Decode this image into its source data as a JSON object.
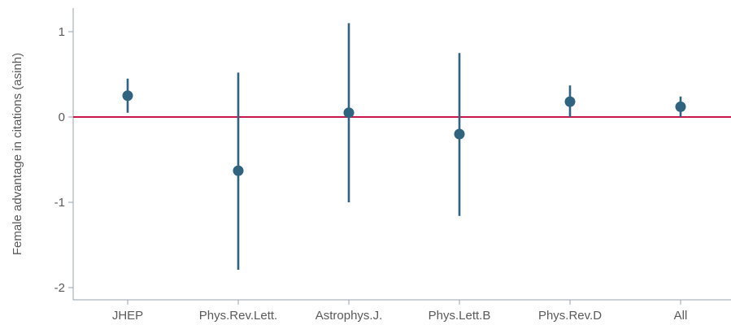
{
  "chart_data": {
    "type": "scatter",
    "subtype": "point-with-error-bars",
    "categories": [
      "JHEP",
      "Phys.Rev.Lett.",
      "Astrophys.J.",
      "Phys.Lett.B",
      "Phys.Rev.D",
      "All"
    ],
    "estimates": [
      0.25,
      -0.63,
      0.05,
      -0.2,
      0.18,
      0.12
    ],
    "lower": [
      0.05,
      -1.79,
      -1.0,
      -1.16,
      0.0,
      0.0
    ],
    "upper": [
      0.45,
      0.52,
      1.1,
      0.75,
      0.37,
      0.24
    ],
    "xlabel": "",
    "ylabel": "Female advantage in citations (asinh)",
    "ylim": [
      -2.1,
      1.25
    ],
    "yticks": [
      -2,
      -1,
      0,
      1
    ],
    "reference_line": 0,
    "grid": false,
    "colors": {
      "points": "#2e6480",
      "reference_line": "#c8174a",
      "axis": "#9aa3ad",
      "text": "#5a5a5a"
    }
  }
}
